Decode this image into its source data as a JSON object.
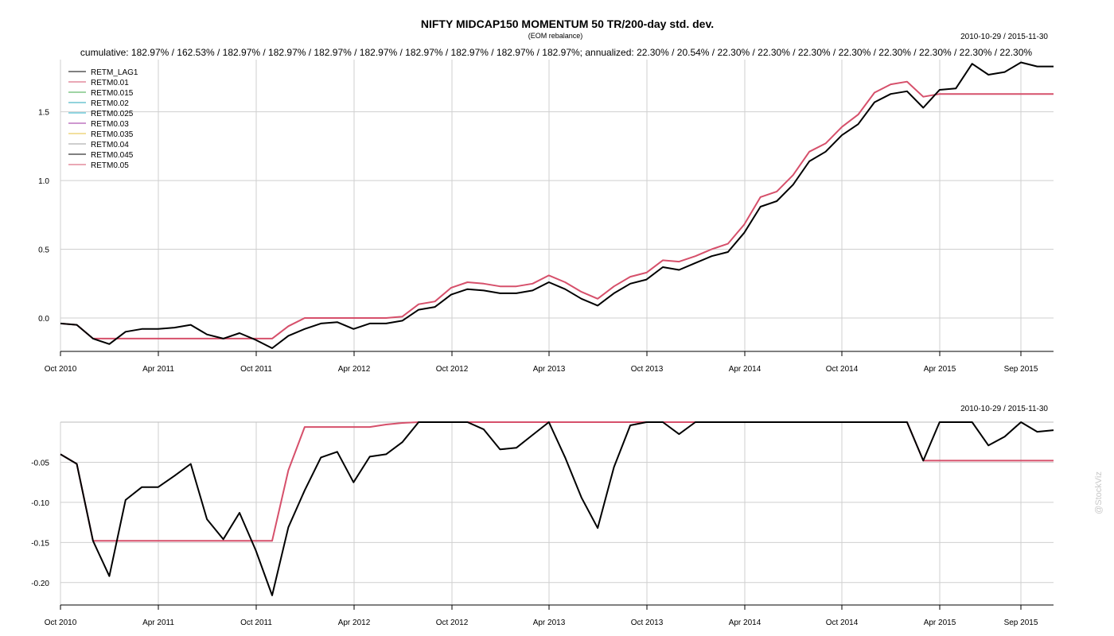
{
  "chart_data": [
    {
      "type": "line",
      "title": "NIFTY MIDCAP150 MOMENTUM 50 TR/200-day std. dev.",
      "subtitle": "(EOM rebalance)",
      "date_range": "2010-10-29 / 2015-11-30",
      "stats_line": "cumulative: 182.97% / 162.53% / 182.97% / 182.97% / 182.97% / 182.97% / 182.97% / 182.97% / 182.97% / 182.97%; annualized: 22.30% / 20.54% / 22.30% / 22.30% / 22.30% / 22.30% / 22.30% / 22.30% / 22.30% / 22.30%",
      "xlabel": "",
      "ylabel": "",
      "x_ticks": [
        "Oct 2010",
        "Apr 2011",
        "Oct 2011",
        "Apr 2012",
        "Oct 2012",
        "Apr 2013",
        "Oct 2013",
        "Apr 2014",
        "Oct 2014",
        "Apr 2015",
        "Sep 2015"
      ],
      "y_ticks": [
        "0.0",
        "0.5",
        "1.0",
        "1.5"
      ],
      "y_tick_values": [
        0.0,
        0.5,
        1.0,
        1.5
      ],
      "ylim": [
        -0.22,
        1.88
      ],
      "grid": true,
      "legend_position": "top-left",
      "x": [
        "2010-10",
        "2010-11",
        "2010-12",
        "2011-01",
        "2011-02",
        "2011-03",
        "2011-04",
        "2011-05",
        "2011-06",
        "2011-07",
        "2011-08",
        "2011-09",
        "2011-10",
        "2011-11",
        "2011-12",
        "2012-01",
        "2012-02",
        "2012-03",
        "2012-04",
        "2012-05",
        "2012-06",
        "2012-07",
        "2012-08",
        "2012-09",
        "2012-10",
        "2012-11",
        "2012-12",
        "2013-01",
        "2013-02",
        "2013-03",
        "2013-04",
        "2013-05",
        "2013-06",
        "2013-07",
        "2013-08",
        "2013-09",
        "2013-10",
        "2013-11",
        "2013-12",
        "2014-01",
        "2014-02",
        "2014-03",
        "2014-04",
        "2014-05",
        "2014-06",
        "2014-07",
        "2014-08",
        "2014-09",
        "2014-10",
        "2014-11",
        "2014-12",
        "2015-01",
        "2015-02",
        "2015-03",
        "2015-04",
        "2015-05",
        "2015-06",
        "2015-07",
        "2015-08",
        "2015-09",
        "2015-10",
        "2015-11"
      ],
      "series": [
        {
          "name": "RETM_LAG1",
          "color": "#000000",
          "values": [
            -0.04,
            -0.05,
            -0.15,
            -0.19,
            -0.1,
            -0.08,
            -0.08,
            -0.07,
            -0.05,
            -0.12,
            -0.15,
            -0.11,
            -0.16,
            -0.22,
            -0.13,
            -0.08,
            -0.04,
            -0.03,
            -0.08,
            -0.04,
            -0.04,
            -0.02,
            0.06,
            0.08,
            0.17,
            0.21,
            0.2,
            0.18,
            0.18,
            0.2,
            0.26,
            0.21,
            0.14,
            0.09,
            0.18,
            0.25,
            0.28,
            0.37,
            0.35,
            0.4,
            0.45,
            0.48,
            0.62,
            0.81,
            0.85,
            0.97,
            1.14,
            1.21,
            1.33,
            1.41,
            1.57,
            1.63,
            1.65,
            1.53,
            1.66,
            1.67,
            1.85,
            1.77,
            1.79,
            1.86,
            1.83,
            1.83
          ]
        },
        {
          "name": "RETM0.01",
          "color": "#d6506b",
          "values": [
            -0.04,
            -0.05,
            -0.15,
            -0.15,
            -0.15,
            -0.15,
            -0.15,
            -0.15,
            -0.15,
            -0.15,
            -0.15,
            -0.15,
            -0.15,
            -0.15,
            -0.06,
            0.0,
            0.0,
            0.0,
            0.0,
            0.0,
            0.0,
            0.01,
            0.1,
            0.12,
            0.22,
            0.26,
            0.25,
            0.23,
            0.23,
            0.25,
            0.31,
            0.26,
            0.19,
            0.14,
            0.23,
            0.3,
            0.33,
            0.42,
            0.41,
            0.45,
            0.5,
            0.54,
            0.68,
            0.88,
            0.92,
            1.04,
            1.21,
            1.27,
            1.39,
            1.48,
            1.64,
            1.7,
            1.72,
            1.61,
            1.63,
            1.63,
            1.63,
            1.63,
            1.63,
            1.63,
            1.63,
            1.63
          ]
        },
        {
          "name": "RETM0.015",
          "color": "#3fa84a"
        },
        {
          "name": "RETM0.02",
          "color": "#25a7b9"
        },
        {
          "name": "RETM0.025",
          "color": "#2bb0c9"
        },
        {
          "name": "RETM0.03",
          "color": "#9c2fa0"
        },
        {
          "name": "RETM0.035",
          "color": "#e6c13d"
        },
        {
          "name": "RETM0.04",
          "color": "#9e9e9e"
        },
        {
          "name": "RETM0.045",
          "color": "#000000"
        },
        {
          "name": "RETM0.05",
          "color": "#d6506b"
        }
      ]
    },
    {
      "type": "line",
      "title": "",
      "date_range": "2010-10-29 / 2015-11-30",
      "xlabel": "",
      "ylabel": "",
      "x_ticks": [
        "Oct 2010",
        "Apr 2011",
        "Oct 2011",
        "Apr 2012",
        "Oct 2012",
        "Apr 2013",
        "Oct 2013",
        "Apr 2014",
        "Oct 2014",
        "Apr 2015",
        "Sep 2015"
      ],
      "y_ticks": [
        "-0.05",
        "-0.10",
        "-0.15",
        "-0.20"
      ],
      "y_tick_values": [
        -0.05,
        -0.1,
        -0.15,
        -0.2
      ],
      "ylim": [
        -0.225,
        0.0
      ],
      "grid": true,
      "series": [
        {
          "name": "RETM_LAG1",
          "color": "#000000",
          "values": [
            -0.04,
            -0.052,
            -0.148,
            -0.192,
            -0.097,
            -0.081,
            -0.081,
            -0.067,
            -0.052,
            -0.121,
            -0.146,
            -0.113,
            -0.16,
            -0.216,
            -0.131,
            -0.085,
            -0.044,
            -0.037,
            -0.075,
            -0.043,
            -0.04,
            -0.025,
            0.0,
            0.0,
            0.0,
            0.0,
            -0.009,
            -0.034,
            -0.032,
            -0.016,
            0.0,
            -0.044,
            -0.094,
            -0.132,
            -0.056,
            -0.004,
            0.0,
            0.0,
            -0.015,
            0.0,
            0.0,
            0.0,
            0.0,
            0.0,
            0.0,
            0.0,
            0.0,
            0.0,
            0.0,
            0.0,
            0.0,
            0.0,
            0.0,
            -0.048,
            0.0,
            0.0,
            0.0,
            -0.029,
            -0.018,
            0.0,
            -0.012,
            -0.01
          ]
        },
        {
          "name": "RETM0.01",
          "color": "#d6506b",
          "values": [
            -0.04,
            -0.052,
            -0.148,
            -0.148,
            -0.148,
            -0.148,
            -0.148,
            -0.148,
            -0.148,
            -0.148,
            -0.148,
            -0.148,
            -0.148,
            -0.148,
            -0.06,
            -0.006,
            -0.006,
            -0.006,
            -0.006,
            -0.006,
            -0.003,
            -0.001,
            0.0,
            0.0,
            0.0,
            0.0,
            0.0,
            0.0,
            0.0,
            0.0,
            0.0,
            0.0,
            0.0,
            0.0,
            0.0,
            0.0,
            0.0,
            0.0,
            0.0,
            0.0,
            0.0,
            0.0,
            0.0,
            0.0,
            0.0,
            0.0,
            0.0,
            0.0,
            0.0,
            0.0,
            0.0,
            0.0,
            0.0,
            -0.048,
            -0.048,
            -0.048,
            -0.048,
            -0.048,
            -0.048,
            -0.048,
            -0.048,
            -0.048
          ]
        }
      ]
    }
  ],
  "watermark": "@StockViz"
}
